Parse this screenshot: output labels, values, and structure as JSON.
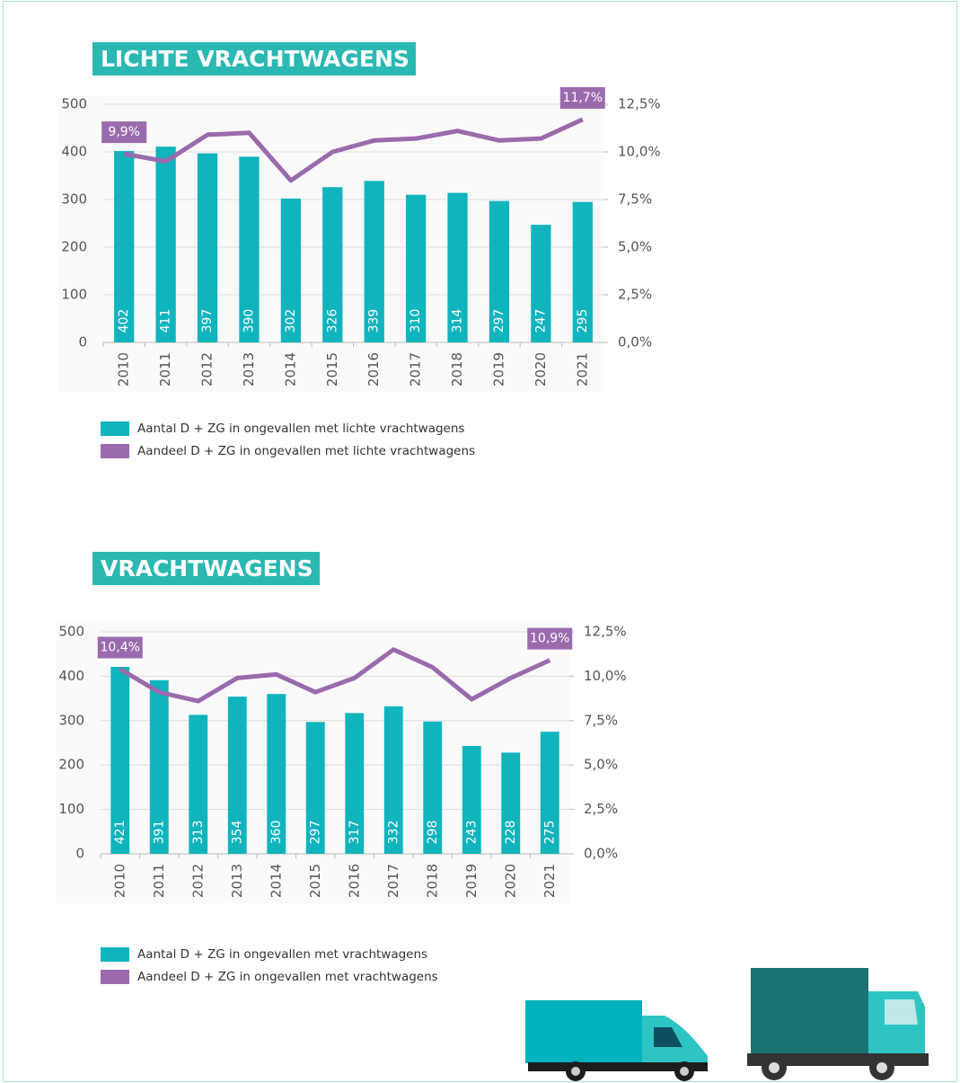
{
  "chart_data": [
    {
      "type": "bar",
      "title": "LICHTE VRACHTWAGENS",
      "categories": [
        "2010",
        "2011",
        "2012",
        "2013",
        "2014",
        "2015",
        "2016",
        "2017",
        "2018",
        "2019",
        "2020",
        "2021"
      ],
      "series": [
        {
          "name": "Aantal D + ZG in ongevallen met lichte vrachtwagens",
          "type": "bar",
          "color": "#10b4bd",
          "values": [
            402,
            411,
            397,
            390,
            302,
            326,
            339,
            310,
            314,
            297,
            247,
            295
          ]
        },
        {
          "name": "Aandeel D + ZG in ongevallen met lichte vrachtwagens",
          "type": "line",
          "axis": "y2",
          "color": "#9b6aad",
          "values": [
            9.9,
            9.5,
            10.9,
            11.0,
            8.5,
            10.0,
            10.6,
            10.7,
            11.1,
            10.6,
            10.7,
            11.7
          ],
          "value_labels": [
            "9,9%",
            null,
            null,
            null,
            null,
            null,
            null,
            null,
            null,
            null,
            null,
            "11,7%"
          ]
        }
      ],
      "ylim": [
        0,
        500
      ],
      "yticks": [
        0,
        100,
        200,
        300,
        400,
        500
      ],
      "y2lim": [
        0,
        12.5
      ],
      "y2ticks": [
        {
          "value": 0,
          "label": "0,0%"
        },
        {
          "value": 2.5,
          "label": "2,5%"
        },
        {
          "value": 5,
          "label": "5,0%"
        },
        {
          "value": 7.5,
          "label": "7,5%"
        },
        {
          "value": 10,
          "label": "10,0%"
        },
        {
          "value": 12.5,
          "label": "12,5%"
        }
      ],
      "grid": true
    },
    {
      "type": "bar",
      "title": "VRACHTWAGENS",
      "categories": [
        "2010",
        "2011",
        "2012",
        "2013",
        "2014",
        "2015",
        "2016",
        "2017",
        "2018",
        "2019",
        "2020",
        "2021"
      ],
      "series": [
        {
          "name": "Aantal D + ZG in ongevallen met vrachtwagens",
          "type": "bar",
          "color": "#10b4bd",
          "values": [
            421,
            391,
            313,
            354,
            360,
            297,
            317,
            332,
            298,
            243,
            228,
            275
          ]
        },
        {
          "name": "Aandeel D + ZG in ongevallen met vrachtwagens",
          "type": "line",
          "axis": "y2",
          "color": "#9b6aad",
          "values": [
            10.4,
            9.1,
            8.6,
            9.9,
            10.1,
            9.1,
            9.9,
            11.5,
            10.5,
            8.7,
            9.9,
            10.9
          ],
          "value_labels": [
            "10,4%",
            null,
            null,
            null,
            null,
            null,
            null,
            null,
            null,
            null,
            null,
            "10,9%"
          ]
        }
      ],
      "ylim": [
        0,
        500
      ],
      "yticks": [
        0,
        100,
        200,
        300,
        400,
        500
      ],
      "y2lim": [
        0,
        12.5
      ],
      "y2ticks": [
        {
          "value": 0,
          "label": "0,0%"
        },
        {
          "value": 2.5,
          "label": "2,5%"
        },
        {
          "value": 5,
          "label": "5,0%"
        },
        {
          "value": 7.5,
          "label": "7,5%"
        },
        {
          "value": 10,
          "label": "10,0%"
        },
        {
          "value": 12.5,
          "label": "12,5%"
        }
      ],
      "grid": true
    }
  ]
}
